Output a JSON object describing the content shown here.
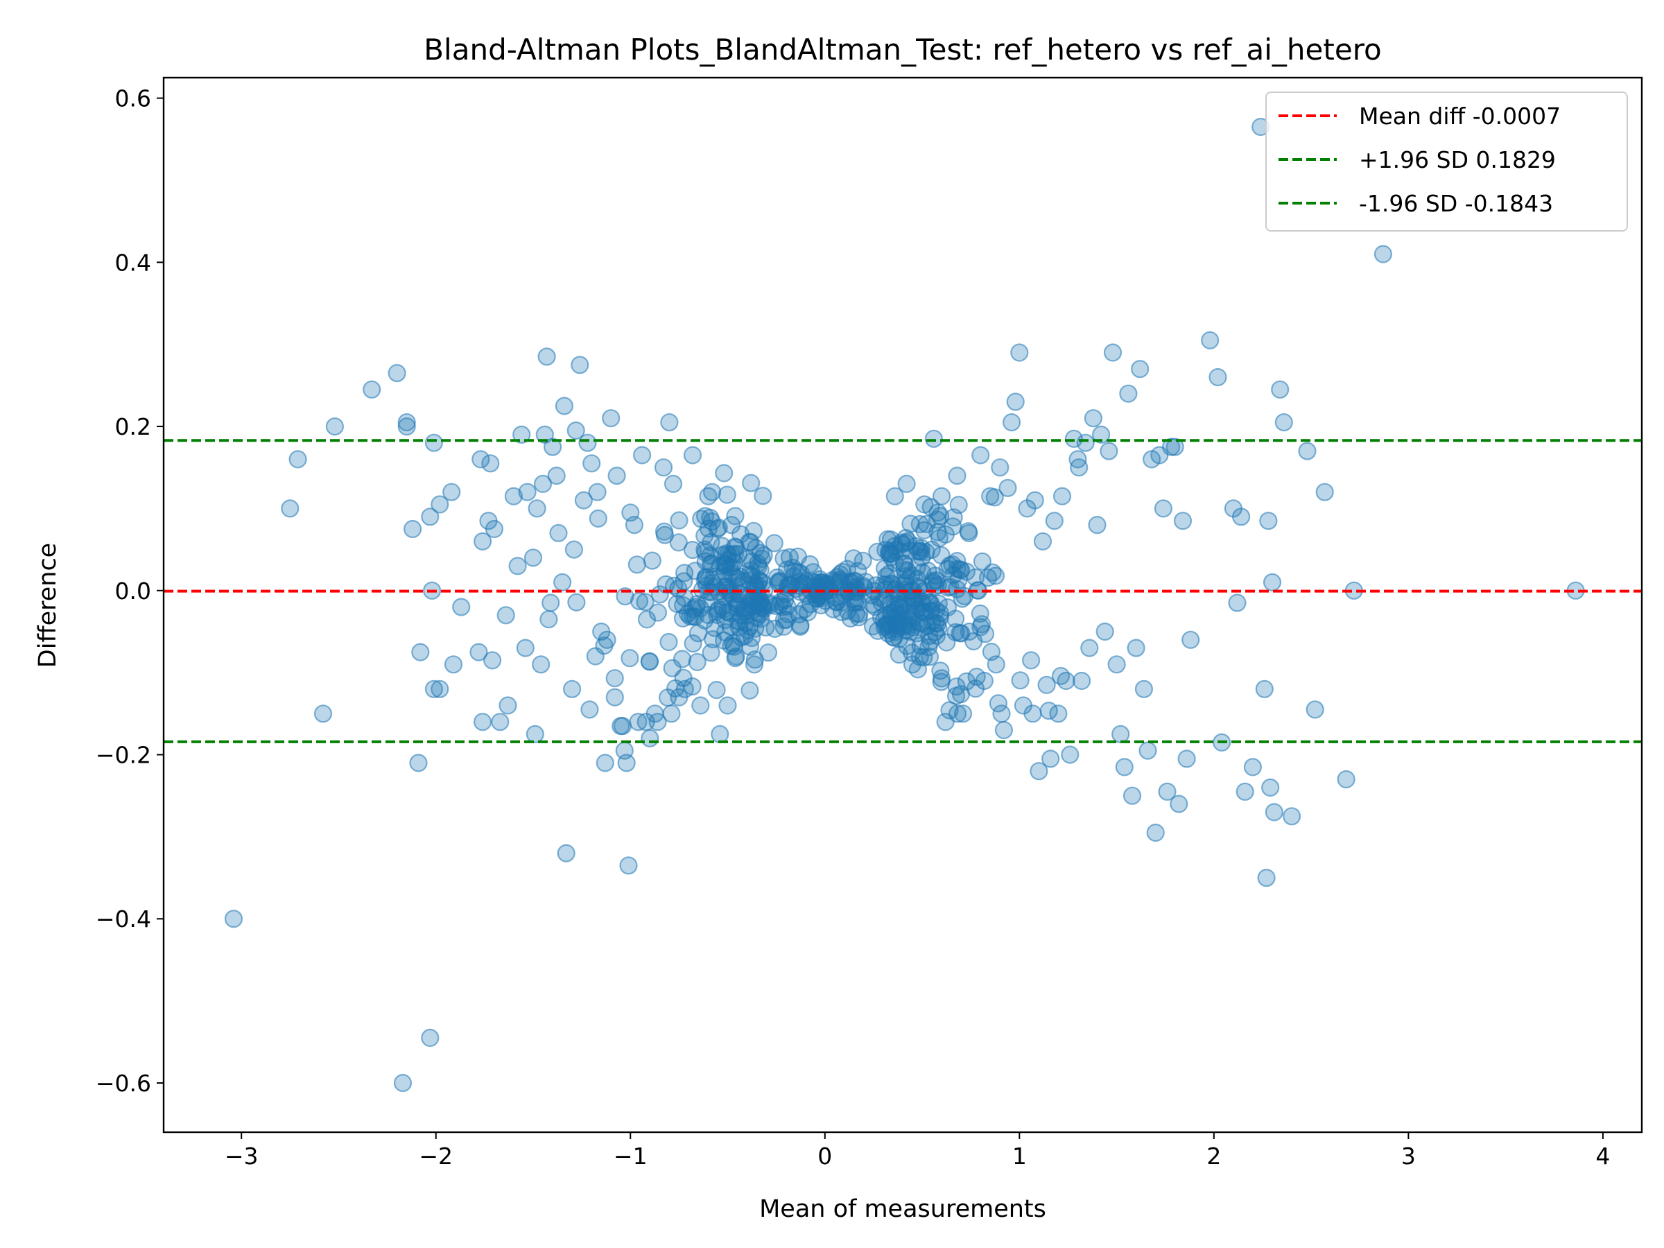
{
  "chart_data": {
    "type": "scatter",
    "title": "Bland-Altman Plots_BlandAltman_Test: ref_hetero vs ref_ai_hetero",
    "xlabel": "Mean of measurements",
    "ylabel": "Difference",
    "xlim": [
      -3.4,
      4.2
    ],
    "ylim": [
      -0.66,
      0.625
    ],
    "xticks": [
      -3,
      -2,
      -1,
      0,
      1,
      2,
      3,
      4
    ],
    "xtick_labels": [
      "−3",
      "−2",
      "−1",
      "0",
      "1",
      "2",
      "3",
      "4"
    ],
    "yticks": [
      -0.6,
      -0.4,
      -0.2,
      0.0,
      0.2,
      0.4,
      0.6
    ],
    "ytick_labels": [
      "−0.6",
      "−0.4",
      "−0.2",
      "0.0",
      "0.2",
      "0.4",
      "0.6"
    ],
    "grid": false,
    "legend_position": "top-right",
    "colors": {
      "points": "#1f77b4",
      "mean_line": "#ff0000",
      "sd_lines": "#008000"
    },
    "reference_lines": [
      {
        "label": "Mean diff -0.0007",
        "y": -0.0007,
        "color": "#ff0000",
        "style": "dashed"
      },
      {
        "label": "+1.96 SD 0.1829",
        "y": 0.1829,
        "color": "#008000",
        "style": "dashed"
      },
      {
        "label": "-1.96 SD -0.1843",
        "y": -0.1843,
        "color": "#008000",
        "style": "dashed"
      }
    ],
    "outliers": [
      [
        -3.04,
        -0.4
      ],
      [
        -2.75,
        0.1
      ],
      [
        -2.71,
        0.16
      ],
      [
        -2.58,
        -0.15
      ],
      [
        -2.52,
        0.2
      ],
      [
        -2.33,
        0.245
      ],
      [
        -2.2,
        0.265
      ],
      [
        -2.17,
        -0.6
      ],
      [
        -2.15,
        0.205
      ],
      [
        -2.15,
        0.2
      ],
      [
        -2.12,
        0.075
      ],
      [
        -2.09,
        -0.21
      ],
      [
        -2.08,
        -0.075
      ],
      [
        -2.03,
        -0.545
      ],
      [
        -2.03,
        0.09
      ],
      [
        -2.02,
        0.0
      ],
      [
        -2.01,
        0.18
      ],
      [
        -2.01,
        -0.12
      ],
      [
        -1.98,
        -0.12
      ],
      [
        -1.98,
        0.105
      ],
      [
        -1.92,
        0.12
      ],
      [
        -1.91,
        -0.09
      ],
      [
        -1.87,
        -0.02
      ],
      [
        -1.78,
        -0.075
      ],
      [
        -1.77,
        0.16
      ],
      [
        -1.76,
        0.06
      ],
      [
        -1.76,
        -0.16
      ],
      [
        -1.73,
        0.085
      ],
      [
        -1.72,
        0.155
      ],
      [
        -1.71,
        -0.085
      ],
      [
        -1.7,
        0.075
      ],
      [
        -1.67,
        -0.16
      ],
      [
        -1.64,
        -0.03
      ],
      [
        -1.63,
        -0.14
      ],
      [
        -1.6,
        0.115
      ],
      [
        -1.58,
        0.03
      ],
      [
        -1.56,
        0.19
      ],
      [
        -1.54,
        -0.07
      ],
      [
        -1.53,
        0.12
      ],
      [
        -1.5,
        0.04
      ],
      [
        -1.49,
        -0.175
      ],
      [
        -1.48,
        0.1
      ],
      [
        -1.46,
        -0.09
      ],
      [
        -1.45,
        0.13
      ],
      [
        -1.44,
        0.19
      ],
      [
        -1.43,
        0.285
      ],
      [
        -1.42,
        -0.035
      ],
      [
        -1.41,
        -0.015
      ],
      [
        -1.4,
        0.175
      ],
      [
        -1.38,
        0.14
      ],
      [
        -1.37,
        0.07
      ],
      [
        -1.35,
        0.01
      ],
      [
        -1.34,
        0.225
      ],
      [
        -1.33,
        -0.32
      ],
      [
        -1.3,
        -0.12
      ],
      [
        -1.29,
        0.05
      ],
      [
        -1.28,
        0.195
      ],
      [
        -1.26,
        0.275
      ],
      [
        -1.24,
        0.11
      ],
      [
        -1.22,
        0.18
      ],
      [
        -1.21,
        -0.145
      ],
      [
        -1.2,
        0.155
      ],
      [
        -1.18,
        -0.08
      ],
      [
        -1.17,
        0.12
      ],
      [
        -1.15,
        -0.05
      ],
      [
        -1.13,
        -0.21
      ],
      [
        -1.12,
        -0.06
      ],
      [
        -1.1,
        0.21
      ],
      [
        -1.08,
        -0.13
      ],
      [
        -1.07,
        0.14
      ],
      [
        -1.05,
        -0.165
      ],
      [
        -1.04,
        -0.165
      ],
      [
        -1.03,
        -0.195
      ],
      [
        -1.02,
        -0.21
      ],
      [
        -1.01,
        -0.335
      ],
      [
        -1.0,
        0.095
      ],
      [
        -0.98,
        0.08
      ],
      [
        -0.96,
        -0.16
      ],
      [
        -0.94,
        0.165
      ],
      [
        -0.92,
        -0.16
      ],
      [
        -0.9,
        -0.18
      ],
      [
        -0.86,
        -0.16
      ],
      [
        -0.83,
        0.15
      ],
      [
        -0.8,
        0.205
      ],
      [
        -0.78,
        0.13
      ],
      [
        -0.75,
        -0.13
      ],
      [
        -0.72,
        -0.12
      ],
      [
        -0.68,
        0.165
      ],
      [
        -0.64,
        -0.14
      ],
      [
        -0.6,
        0.115
      ],
      [
        -0.58,
        0.12
      ],
      [
        -0.54,
        -0.175
      ],
      [
        -0.5,
        -0.14
      ],
      [
        -0.48,
        0.08
      ],
      [
        0.36,
        0.115
      ],
      [
        0.42,
        0.13
      ],
      [
        0.45,
        -0.09
      ],
      [
        0.56,
        0.185
      ],
      [
        0.58,
        0.095
      ],
      [
        0.6,
        0.115
      ],
      [
        0.62,
        -0.16
      ],
      [
        0.68,
        0.14
      ],
      [
        0.7,
        0.025
      ],
      [
        0.74,
        0.07
      ],
      [
        0.78,
        -0.105
      ],
      [
        0.8,
        0.165
      ],
      [
        0.82,
        -0.11
      ],
      [
        0.85,
        0.115
      ],
      [
        0.88,
        -0.09
      ],
      [
        0.9,
        0.15
      ],
      [
        0.92,
        -0.17
      ],
      [
        0.94,
        0.125
      ],
      [
        0.96,
        0.205
      ],
      [
        0.98,
        0.23
      ],
      [
        1.0,
        0.29
      ],
      [
        1.02,
        -0.14
      ],
      [
        1.04,
        0.1
      ],
      [
        1.06,
        -0.085
      ],
      [
        1.08,
        0.11
      ],
      [
        1.1,
        -0.22
      ],
      [
        1.12,
        0.06
      ],
      [
        1.14,
        -0.115
      ],
      [
        1.16,
        -0.205
      ],
      [
        1.18,
        0.085
      ],
      [
        1.2,
        -0.15
      ],
      [
        1.22,
        0.115
      ],
      [
        1.24,
        -0.11
      ],
      [
        1.26,
        -0.2
      ],
      [
        1.28,
        0.185
      ],
      [
        1.3,
        0.16
      ],
      [
        1.32,
        -0.11
      ],
      [
        1.34,
        0.18
      ],
      [
        1.36,
        -0.07
      ],
      [
        1.38,
        0.21
      ],
      [
        1.4,
        0.08
      ],
      [
        1.42,
        0.19
      ],
      [
        1.44,
        -0.05
      ],
      [
        1.46,
        0.17
      ],
      [
        1.48,
        0.29
      ],
      [
        1.5,
        -0.09
      ],
      [
        1.52,
        -0.175
      ],
      [
        1.54,
        -0.215
      ],
      [
        1.56,
        0.24
      ],
      [
        1.58,
        -0.25
      ],
      [
        1.6,
        -0.07
      ],
      [
        1.62,
        0.27
      ],
      [
        1.64,
        -0.12
      ],
      [
        1.66,
        -0.195
      ],
      [
        1.68,
        0.16
      ],
      [
        1.7,
        -0.295
      ],
      [
        1.72,
        0.165
      ],
      [
        1.74,
        0.1
      ],
      [
        1.76,
        -0.245
      ],
      [
        1.78,
        0.175
      ],
      [
        1.8,
        0.175
      ],
      [
        1.82,
        -0.26
      ],
      [
        1.84,
        0.085
      ],
      [
        1.86,
        -0.205
      ],
      [
        1.88,
        -0.06
      ],
      [
        1.98,
        0.305
      ],
      [
        2.02,
        0.26
      ],
      [
        2.04,
        -0.185
      ],
      [
        2.1,
        0.1
      ],
      [
        2.12,
        -0.015
      ],
      [
        2.14,
        0.09
      ],
      [
        2.16,
        -0.245
      ],
      [
        2.2,
        -0.215
      ],
      [
        2.24,
        0.565
      ],
      [
        2.26,
        -0.12
      ],
      [
        2.27,
        -0.35
      ],
      [
        2.28,
        0.085
      ],
      [
        2.29,
        -0.24
      ],
      [
        2.3,
        0.01
      ],
      [
        2.31,
        -0.27
      ],
      [
        2.34,
        0.245
      ],
      [
        2.36,
        0.205
      ],
      [
        2.4,
        -0.275
      ],
      [
        2.48,
        0.17
      ],
      [
        2.52,
        -0.145
      ],
      [
        2.57,
        0.12
      ],
      [
        2.68,
        -0.23
      ],
      [
        2.72,
        0.0
      ],
      [
        2.87,
        0.41
      ],
      [
        3.86,
        0.0
      ]
    ]
  }
}
